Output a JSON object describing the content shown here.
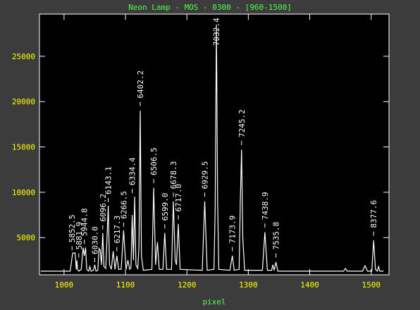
{
  "chart_data": {
    "type": "line",
    "title": "Neon Lamp - MOS - 0300 - [960-1500]",
    "x_label": "pixel",
    "line_color": "#ffffff",
    "axis_color": "#ffffff",
    "tick_label_color": "#ffff00",
    "title_color": "#4cff4c",
    "plot_background": "#000000",
    "xlim": [
      960,
      1529
    ],
    "ylim": [
      900,
      29650
    ],
    "xticks": [
      1000,
      1100,
      1200,
      1300,
      1400,
      1500
    ],
    "yticks": [
      5000,
      10000,
      15000,
      20000,
      25000
    ],
    "x": [
      962,
      1010,
      1014,
      1016,
      1018,
      1020,
      1021,
      1022,
      1024,
      1028,
      1031,
      1033,
      1035,
      1037,
      1040,
      1042,
      1044,
      1048,
      1050,
      1052,
      1055,
      1057,
      1059,
      1061,
      1063,
      1065,
      1068,
      1070,
      1072,
      1074,
      1077,
      1080,
      1083,
      1086,
      1089,
      1093,
      1097,
      1101,
      1104,
      1107,
      1109,
      1111,
      1113,
      1115,
      1117,
      1120,
      1122,
      1124,
      1126,
      1129,
      1143,
      1146,
      1149,
      1152,
      1155,
      1161,
      1164,
      1167,
      1175,
      1178,
      1181,
      1183,
      1186,
      1189,
      1225,
      1229,
      1233,
      1244,
      1246,
      1248,
      1250,
      1252,
      1270,
      1274,
      1277,
      1285,
      1287,
      1289,
      1291,
      1294,
      1323,
      1327,
      1331,
      1338,
      1340,
      1342,
      1345,
      1348,
      1420,
      1455,
      1458,
      1461,
      1486,
      1490,
      1494,
      1501,
      1504,
      1507,
      1510,
      1512,
      1514,
      1520
    ],
    "y": [
      1300,
      1300,
      3300,
      3300,
      3300,
      1500,
      2500,
      1500,
      1300,
      1500,
      3900,
      3000,
      3900,
      1500,
      1300,
      1800,
      1300,
      1400,
      2000,
      1300,
      1400,
      3800,
      3600,
      2000,
      5500,
      1800,
      1600,
      5000,
      8500,
      2000,
      1500,
      3500,
      1500,
      3000,
      1500,
      1500,
      5800,
      1500,
      2500,
      1500,
      1700,
      7500,
      2500,
      9500,
      2000,
      1600,
      4000,
      19000,
      3000,
      1400,
      1500,
      10500,
      2000,
      4500,
      1500,
      1500,
      5500,
      1500,
      1500,
      9000,
      2500,
      2000,
      6500,
      1500,
      1400,
      9000,
      1400,
      1500,
      8000,
      28500,
      9000,
      1500,
      1400,
      3000,
      1400,
      1500,
      9000,
      14700,
      5000,
      1400,
      1400,
      5600,
      1400,
      1400,
      2000,
      1400,
      2300,
      1300,
      1300,
      1300,
      1600,
      1300,
      1300,
      1900,
      1300,
      1300,
      4700,
      1500,
      1300,
      1800,
      1300,
      1300
    ],
    "annotations": [
      {
        "x": 1013,
        "y": 3600,
        "label": "5852.5"
      },
      {
        "x": 1024,
        "y": 2800,
        "label": "5881.9"
      },
      {
        "x": 1033,
        "y": 4300,
        "label": "5944.8"
      },
      {
        "x": 1050,
        "y": 2300,
        "label": "6030.0"
      },
      {
        "x": 1063,
        "y": 5900,
        "label": "6096.2"
      },
      {
        "x": 1072,
        "y": 8900,
        "label": "6143.1"
      },
      {
        "x": 1086,
        "y": 3500,
        "label": "6217.3"
      },
      {
        "x": 1097,
        "y": 6200,
        "label": "6266.5"
      },
      {
        "x": 1111,
        "y": 9900,
        "label": "6334.4"
      },
      {
        "x": 1124,
        "y": 19500,
        "label": "6402.2"
      },
      {
        "x": 1146,
        "y": 11000,
        "label": "6506.5"
      },
      {
        "x": 1164,
        "y": 6000,
        "label": "6599.0"
      },
      {
        "x": 1178,
        "y": 9500,
        "label": "6678.3"
      },
      {
        "x": 1186,
        "y": 7000,
        "label": "6717.0"
      },
      {
        "x": 1229,
        "y": 9500,
        "label": "6929.5"
      },
      {
        "x": 1248,
        "y": 25300,
        "label": "7032.4"
      },
      {
        "x": 1274,
        "y": 3500,
        "label": "7173.9"
      },
      {
        "x": 1289,
        "y": 15200,
        "label": "7245.2"
      },
      {
        "x": 1327,
        "y": 6100,
        "label": "7438.9"
      },
      {
        "x": 1345,
        "y": 2800,
        "label": "7535.8"
      },
      {
        "x": 1504,
        "y": 5200,
        "label": "8377.6"
      }
    ]
  }
}
